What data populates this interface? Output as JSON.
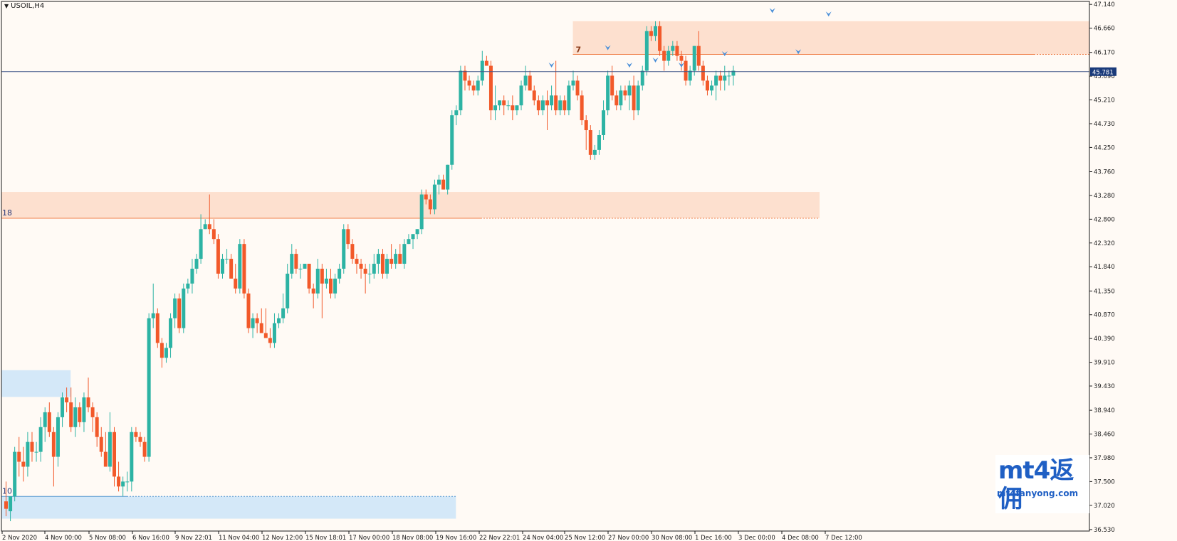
{
  "chart_title": "USOIL,H4",
  "watermark": {
    "logo": "mt4返佣",
    "url": "mt4fanyong.com"
  },
  "colors": {
    "background": "#fffaf5",
    "bull": "#2db3a4",
    "bear": "#f2592a",
    "supply_zone": "#fde0cf",
    "demand_zone": "#d4e8f8",
    "current_price_line": "#3f5588",
    "current_price_tag": "#1a3a7a",
    "fractal_arrow": "#4a8fd8"
  },
  "chart_data": {
    "type": "candlestick",
    "symbol": "USOIL",
    "timeframe": "H4",
    "ylim": [
      36.5,
      47.2
    ],
    "y_ticks": [
      "47.140",
      "46.660",
      "46.170",
      "45.690",
      "45.210",
      "44.730",
      "44.250",
      "43.760",
      "43.280",
      "42.800",
      "42.320",
      "41.840",
      "41.350",
      "40.870",
      "40.390",
      "39.910",
      "39.430",
      "38.940",
      "38.460",
      "37.980",
      "37.500",
      "37.020",
      "36.530"
    ],
    "x_labels": [
      "2 Nov 2020",
      "4 Nov 00:00",
      "5 Nov 08:00",
      "6 Nov 16:00",
      "9 Nov 22:01",
      "11 Nov 04:00",
      "12 Nov 12:00",
      "15 Nov 18:01",
      "17 Nov 00:00",
      "18 Nov 08:00",
      "19 Nov 16:00",
      "22 Nov 22:01",
      "24 Nov 04:00",
      "25 Nov 12:00",
      "27 Nov 00:00",
      "30 Nov 08:00",
      "1 Dec 16:00",
      "3 Dec 00:00",
      "4 Dec 08:00",
      "7 Dec 12:00"
    ],
    "current_price": 45.781,
    "current_price_label": "45.781",
    "zones": [
      {
        "label": "",
        "kind": "supply",
        "top": 46.8,
        "bottom": 46.13,
        "line": 46.13,
        "start_bar": 132,
        "end": "right"
      },
      {
        "label": "18",
        "kind": "supply",
        "top": 43.35,
        "bottom": 42.82,
        "line": 42.82,
        "start_bar": 0,
        "end_bar": 188
      },
      {
        "label": "",
        "kind": "demand",
        "top": 39.75,
        "bottom": 39.21,
        "start_bar": 0,
        "end_bar": 15
      },
      {
        "label": "10",
        "kind": "demand",
        "top": 37.2,
        "bottom": 36.75,
        "line": 37.2,
        "start_bar": 0,
        "end_bar": 104
      }
    ],
    "zone_mark": "7",
    "candles": [
      [
        37.1,
        37.5,
        36.8,
        36.95
      ],
      [
        36.9,
        37.2,
        36.7,
        37.2
      ],
      [
        37.2,
        38.2,
        37.1,
        38.1
      ],
      [
        38.1,
        38.4,
        37.6,
        37.9
      ],
      [
        37.9,
        38.2,
        37.5,
        37.8
      ],
      [
        37.8,
        38.5,
        37.6,
        38.3
      ],
      [
        38.3,
        38.5,
        37.9,
        38.1
      ],
      [
        38.1,
        38.3,
        37.9,
        38.1
      ],
      [
        38.1,
        38.8,
        37.9,
        38.6
      ],
      [
        38.6,
        39.0,
        38.3,
        38.9
      ],
      [
        38.9,
        39.1,
        38.4,
        38.5
      ],
      [
        38.5,
        38.6,
        37.4,
        38.0
      ],
      [
        38.0,
        38.9,
        37.8,
        38.8
      ],
      [
        38.8,
        39.3,
        38.6,
        39.2
      ],
      [
        39.2,
        39.4,
        38.9,
        39.1
      ],
      [
        39.1,
        39.4,
        38.5,
        38.6
      ],
      [
        38.6,
        39.2,
        38.4,
        39.0
      ],
      [
        39.0,
        39.1,
        38.6,
        38.7
      ],
      [
        38.7,
        39.3,
        38.5,
        39.2
      ],
      [
        39.2,
        39.6,
        38.9,
        39.0
      ],
      [
        39.0,
        39.1,
        38.5,
        38.8
      ],
      [
        38.8,
        38.9,
        38.2,
        38.4
      ],
      [
        38.4,
        38.6,
        38.0,
        38.1
      ],
      [
        38.1,
        38.5,
        37.8,
        37.8
      ],
      [
        37.8,
        38.9,
        37.7,
        38.5
      ],
      [
        38.5,
        38.6,
        37.4,
        37.6
      ],
      [
        37.6,
        37.9,
        37.3,
        37.4
      ],
      [
        37.4,
        37.6,
        37.2,
        37.5
      ],
      [
        37.5,
        37.7,
        37.3,
        37.5
      ],
      [
        37.5,
        38.6,
        37.3,
        38.5
      ],
      [
        38.5,
        38.6,
        38.3,
        38.4
      ],
      [
        38.4,
        38.5,
        38.2,
        38.3
      ],
      [
        38.3,
        38.4,
        37.9,
        38.0
      ],
      [
        38.0,
        40.9,
        37.9,
        40.8
      ],
      [
        40.8,
        41.5,
        40.6,
        40.9
      ],
      [
        40.9,
        41.0,
        40.2,
        40.3
      ],
      [
        40.3,
        40.4,
        39.8,
        40.0
      ],
      [
        40.0,
        40.3,
        39.9,
        40.2
      ],
      [
        40.2,
        40.9,
        40.0,
        40.8
      ],
      [
        40.8,
        41.3,
        40.6,
        41.2
      ],
      [
        41.2,
        41.3,
        40.5,
        40.6
      ],
      [
        40.6,
        41.5,
        40.5,
        41.4
      ],
      [
        41.4,
        41.6,
        41.3,
        41.5
      ],
      [
        41.5,
        42.0,
        41.3,
        41.8
      ],
      [
        41.8,
        42.1,
        41.7,
        42.0
      ],
      [
        42.0,
        42.9,
        41.9,
        42.6
      ],
      [
        42.6,
        42.8,
        42.6,
        42.7
      ],
      [
        42.7,
        43.3,
        42.5,
        42.6
      ],
      [
        42.6,
        42.8,
        42.3,
        42.4
      ],
      [
        42.4,
        42.5,
        41.6,
        41.7
      ],
      [
        41.7,
        42.1,
        41.6,
        42.0
      ],
      [
        42.0,
        42.2,
        41.9,
        42.0
      ],
      [
        42.0,
        42.1,
        41.6,
        41.6
      ],
      [
        41.6,
        41.9,
        41.3,
        41.4
      ],
      [
        41.4,
        42.4,
        41.3,
        42.3
      ],
      [
        42.3,
        42.4,
        41.2,
        41.3
      ],
      [
        41.3,
        41.4,
        40.5,
        40.6
      ],
      [
        40.6,
        40.9,
        40.4,
        40.8
      ],
      [
        40.8,
        40.9,
        40.5,
        40.7
      ],
      [
        40.7,
        41.0,
        40.5,
        40.5
      ],
      [
        40.5,
        41.0,
        40.4,
        40.4
      ],
      [
        40.4,
        40.6,
        40.2,
        40.3
      ],
      [
        40.3,
        40.9,
        40.2,
        40.7
      ],
      [
        40.7,
        40.9,
        40.6,
        40.8
      ],
      [
        40.8,
        41.3,
        40.7,
        41.0
      ],
      [
        41.0,
        41.9,
        40.9,
        41.7
      ],
      [
        41.7,
        42.3,
        41.6,
        42.1
      ],
      [
        42.1,
        42.2,
        41.7,
        41.8
      ],
      [
        41.8,
        41.9,
        41.6,
        41.8
      ],
      [
        41.8,
        41.9,
        41.8,
        41.9
      ],
      [
        41.9,
        41.9,
        41.3,
        41.4
      ],
      [
        41.4,
        41.5,
        41.0,
        41.3
      ],
      [
        41.3,
        42.0,
        41.2,
        41.8
      ],
      [
        41.8,
        41.9,
        40.8,
        41.5
      ],
      [
        41.5,
        41.8,
        41.4,
        41.6
      ],
      [
        41.6,
        41.8,
        41.2,
        41.3
      ],
      [
        41.3,
        41.7,
        41.2,
        41.6
      ],
      [
        41.6,
        41.9,
        41.5,
        41.8
      ],
      [
        41.8,
        42.7,
        41.7,
        42.6
      ],
      [
        42.6,
        42.7,
        42.2,
        42.3
      ],
      [
        42.3,
        42.4,
        41.9,
        42.0
      ],
      [
        42.0,
        42.1,
        41.7,
        41.9
      ],
      [
        41.9,
        42.0,
        41.6,
        41.8
      ],
      [
        41.8,
        41.9,
        41.3,
        41.7
      ],
      [
        41.7,
        41.9,
        41.5,
        41.7
      ],
      [
        41.7,
        42.1,
        41.6,
        41.9
      ],
      [
        41.9,
        42.2,
        41.7,
        42.1
      ],
      [
        42.1,
        42.2,
        41.6,
        41.7
      ],
      [
        41.7,
        42.1,
        41.6,
        42.0
      ],
      [
        42.0,
        42.3,
        41.8,
        41.9
      ],
      [
        41.9,
        42.2,
        41.8,
        42.1
      ],
      [
        42.1,
        42.3,
        41.9,
        41.9
      ],
      [
        41.9,
        42.4,
        41.8,
        42.3
      ],
      [
        42.3,
        42.5,
        42.3,
        42.4
      ],
      [
        42.4,
        42.5,
        42.2,
        42.5
      ],
      [
        42.5,
        42.6,
        42.4,
        42.6
      ],
      [
        42.6,
        43.4,
        42.5,
        43.3
      ],
      [
        43.3,
        43.4,
        43.1,
        43.2
      ],
      [
        43.2,
        43.3,
        42.9,
        43.0
      ],
      [
        43.0,
        43.6,
        42.9,
        43.5
      ],
      [
        43.5,
        43.7,
        43.3,
        43.6
      ],
      [
        43.6,
        43.7,
        43.4,
        43.4
      ],
      [
        43.4,
        43.9,
        43.3,
        43.9
      ],
      [
        43.9,
        45.0,
        43.8,
        44.9
      ],
      [
        44.9,
        45.1,
        44.7,
        45.0
      ],
      [
        45.0,
        45.9,
        44.9,
        45.8
      ],
      [
        45.8,
        45.9,
        45.4,
        45.6
      ],
      [
        45.6,
        45.7,
        45.4,
        45.5
      ],
      [
        45.5,
        45.6,
        45.3,
        45.4
      ],
      [
        45.4,
        45.7,
        45.3,
        45.6
      ],
      [
        45.6,
        46.2,
        45.5,
        46.0
      ],
      [
        46.0,
        46.1,
        45.9,
        45.9
      ],
      [
        45.9,
        46.0,
        44.8,
        45.0
      ],
      [
        45.0,
        45.5,
        44.8,
        45.1
      ],
      [
        45.1,
        45.2,
        45.0,
        45.2
      ],
      [
        45.2,
        45.3,
        44.9,
        45.1
      ],
      [
        45.1,
        45.2,
        45.0,
        45.1
      ],
      [
        45.1,
        45.3,
        44.8,
        45.0
      ],
      [
        45.0,
        45.1,
        44.9,
        45.1
      ],
      [
        45.1,
        45.6,
        45.0,
        45.5
      ],
      [
        45.5,
        45.9,
        45.4,
        45.7
      ],
      [
        45.7,
        45.8,
        45.4,
        45.4
      ],
      [
        45.4,
        45.5,
        45.1,
        45.2
      ],
      [
        45.2,
        45.3,
        44.9,
        45.0
      ],
      [
        45.0,
        45.3,
        44.9,
        45.2
      ],
      [
        45.2,
        45.4,
        44.6,
        45.1
      ],
      [
        45.1,
        45.5,
        45.0,
        45.3
      ],
      [
        45.3,
        46.0,
        44.9,
        45.0
      ],
      [
        45.0,
        45.3,
        44.9,
        45.2
      ],
      [
        45.2,
        45.3,
        44.9,
        45.0
      ],
      [
        45.0,
        45.6,
        44.9,
        45.5
      ],
      [
        45.5,
        45.8,
        45.4,
        45.6
      ],
      [
        45.6,
        45.7,
        45.2,
        45.3
      ],
      [
        45.3,
        45.4,
        44.7,
        44.8
      ],
      [
        44.8,
        44.9,
        44.2,
        44.6
      ],
      [
        44.6,
        44.7,
        44.0,
        44.1
      ],
      [
        44.1,
        44.3,
        44.0,
        44.2
      ],
      [
        44.2,
        44.6,
        44.1,
        44.5
      ],
      [
        44.5,
        45.2,
        44.4,
        45.0
      ],
      [
        45.0,
        45.8,
        44.9,
        45.7
      ],
      [
        45.7,
        45.9,
        45.2,
        45.3
      ],
      [
        45.3,
        45.4,
        45.0,
        45.1
      ],
      [
        45.1,
        45.5,
        45.0,
        45.4
      ],
      [
        45.4,
        45.5,
        45.2,
        45.3
      ],
      [
        45.3,
        45.6,
        45.0,
        45.5
      ],
      [
        45.5,
        45.7,
        44.8,
        45.0
      ],
      [
        45.0,
        45.6,
        44.9,
        45.5
      ],
      [
        45.5,
        45.9,
        45.4,
        45.8
      ],
      [
        45.8,
        46.7,
        45.7,
        46.6
      ],
      [
        46.6,
        46.7,
        46.4,
        46.5
      ],
      [
        46.5,
        46.8,
        46.4,
        46.7
      ],
      [
        46.7,
        46.8,
        46.1,
        46.2
      ],
      [
        46.2,
        46.3,
        45.8,
        46.0
      ],
      [
        46.0,
        46.3,
        45.9,
        46.2
      ],
      [
        46.2,
        46.4,
        46.1,
        46.3
      ],
      [
        46.3,
        46.4,
        46.0,
        46.1
      ],
      [
        46.1,
        46.2,
        45.8,
        46.0
      ],
      [
        46.0,
        46.1,
        45.5,
        45.6
      ],
      [
        45.6,
        45.9,
        45.5,
        45.8
      ],
      [
        45.8,
        46.3,
        45.7,
        46.3
      ],
      [
        46.3,
        46.6,
        45.8,
        45.9
      ],
      [
        45.9,
        46.0,
        45.5,
        45.6
      ],
      [
        45.6,
        45.7,
        45.3,
        45.4
      ],
      [
        45.4,
        45.6,
        45.3,
        45.5
      ],
      [
        45.5,
        45.8,
        45.2,
        45.7
      ],
      [
        45.7,
        45.8,
        45.4,
        45.6
      ],
      [
        45.6,
        45.9,
        45.4,
        45.7
      ],
      [
        45.7,
        45.8,
        45.5,
        45.7
      ],
      [
        45.7,
        45.9,
        45.5,
        45.8
      ]
    ]
  }
}
